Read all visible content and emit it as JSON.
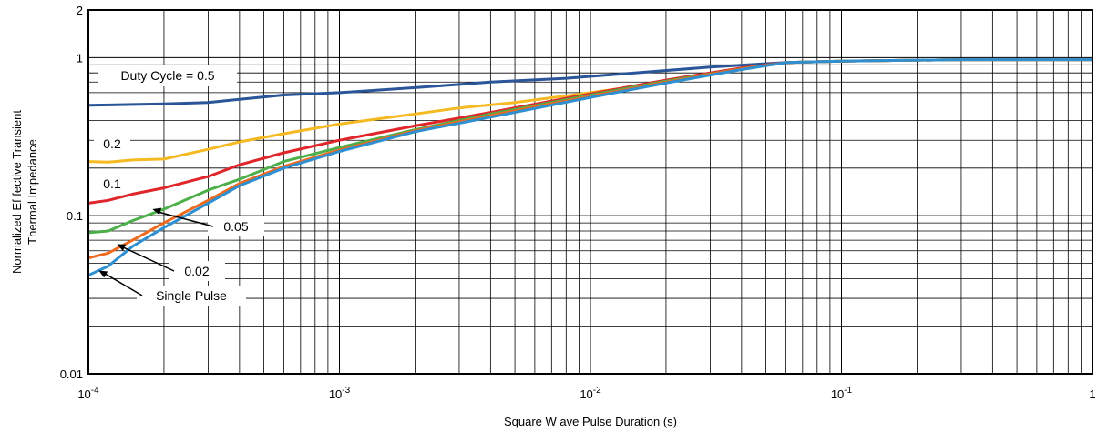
{
  "chart_data": {
    "type": "line",
    "title": "",
    "xlabel": "Square W ave Pulse Duration (s)",
    "ylabel_lines": [
      "Normalized Ef fective Transient",
      "Thermal Impedance"
    ],
    "x_scale": "log",
    "y_scale": "log",
    "xlim": [
      0.0001,
      1
    ],
    "ylim": [
      0.01,
      2
    ],
    "grid": true,
    "x_ticks": [
      {
        "value": 0.0001,
        "base": "10",
        "exp": "-4"
      },
      {
        "value": 0.001,
        "base": "10",
        "exp": "-3"
      },
      {
        "value": 0.01,
        "base": "10",
        "exp": "-2"
      },
      {
        "value": 0.1,
        "base": "10",
        "exp": "-1"
      },
      {
        "value": 1,
        "base": "1",
        "exp": ""
      }
    ],
    "y_ticks": [
      {
        "value": 0.01,
        "label": "0.01"
      },
      {
        "value": 0.1,
        "label": "0.1"
      },
      {
        "value": 1,
        "label": "1"
      },
      {
        "value": 2,
        "label": "2"
      }
    ],
    "series": [
      {
        "name": "Duty Cycle = 0.5",
        "color": "#2a5599",
        "x": [
          0.0001,
          0.00015,
          0.0002,
          0.0003,
          0.0004,
          0.0006,
          0.001,
          0.002,
          0.004,
          0.008,
          0.015,
          0.03,
          0.06,
          0.1,
          0.3,
          1
        ],
        "y": [
          0.5,
          0.505,
          0.51,
          0.52,
          0.545,
          0.58,
          0.6,
          0.645,
          0.7,
          0.74,
          0.8,
          0.87,
          0.93,
          0.95,
          0.97,
          0.97
        ]
      },
      {
        "name": "0.2",
        "color": "#f5b921",
        "x": [
          0.0001,
          0.00012,
          0.00015,
          0.0002,
          0.0003,
          0.0004,
          0.0006,
          0.001,
          0.002,
          0.003,
          0.005,
          0.01,
          0.02,
          0.04,
          0.06,
          0.1,
          0.3,
          1
        ],
        "y": [
          0.22,
          0.218,
          0.225,
          0.228,
          0.263,
          0.293,
          0.33,
          0.38,
          0.44,
          0.48,
          0.52,
          0.6,
          0.7,
          0.85,
          0.93,
          0.95,
          0.97,
          0.97
        ]
      },
      {
        "name": "0.1",
        "color": "#e0262b",
        "x": [
          0.0001,
          0.00012,
          0.00015,
          0.0002,
          0.0003,
          0.0004,
          0.0006,
          0.001,
          0.002,
          0.004,
          0.01,
          0.02,
          0.04,
          0.06,
          0.1,
          0.3,
          1
        ],
        "y": [
          0.12,
          0.125,
          0.137,
          0.15,
          0.177,
          0.21,
          0.25,
          0.3,
          0.37,
          0.45,
          0.59,
          0.72,
          0.86,
          0.93,
          0.95,
          0.97,
          0.97
        ]
      },
      {
        "name": "0.05",
        "color": "#4caf4a",
        "x": [
          0.0001,
          0.00012,
          0.00015,
          0.0002,
          0.0003,
          0.0004,
          0.0006,
          0.001,
          0.002,
          0.004,
          0.01,
          0.02,
          0.04,
          0.06,
          0.1,
          0.3,
          1
        ],
        "y": [
          0.078,
          0.08,
          0.093,
          0.11,
          0.145,
          0.17,
          0.22,
          0.27,
          0.35,
          0.44,
          0.58,
          0.71,
          0.85,
          0.93,
          0.95,
          0.97,
          0.97
        ]
      },
      {
        "name": "0.02",
        "color": "#ee6a1e",
        "x": [
          0.0001,
          0.00012,
          0.00015,
          0.0002,
          0.0003,
          0.0004,
          0.0006,
          0.001,
          0.002,
          0.004,
          0.01,
          0.02,
          0.04,
          0.06,
          0.1,
          0.3,
          1
        ],
        "y": [
          0.054,
          0.058,
          0.07,
          0.09,
          0.125,
          0.16,
          0.205,
          0.26,
          0.345,
          0.43,
          0.57,
          0.7,
          0.85,
          0.93,
          0.95,
          0.97,
          0.97
        ]
      },
      {
        "name": "Single Pulse",
        "color": "#2e8fd1",
        "x": [
          0.0001,
          0.00012,
          0.00015,
          0.0002,
          0.0003,
          0.0004,
          0.0006,
          0.001,
          0.002,
          0.004,
          0.01,
          0.02,
          0.04,
          0.06,
          0.1,
          0.3,
          1
        ],
        "y": [
          0.042,
          0.048,
          0.064,
          0.084,
          0.12,
          0.155,
          0.2,
          0.255,
          0.34,
          0.42,
          0.56,
          0.69,
          0.84,
          0.93,
          0.95,
          0.97,
          0.97
        ]
      }
    ],
    "annotations": [
      {
        "text": "Duty Cycle = 0.5",
        "arrow": false
      },
      {
        "text": "0.2",
        "arrow": false
      },
      {
        "text": "0.1",
        "arrow": false
      },
      {
        "text": "0.05",
        "arrow": true,
        "to": [
          0.00018,
          0.11
        ]
      },
      {
        "text": "0.02",
        "arrow": true,
        "to": [
          0.00013,
          0.066
        ]
      },
      {
        "text": "Single Pulse",
        "arrow": true,
        "to": [
          0.00011,
          0.045
        ]
      }
    ]
  }
}
